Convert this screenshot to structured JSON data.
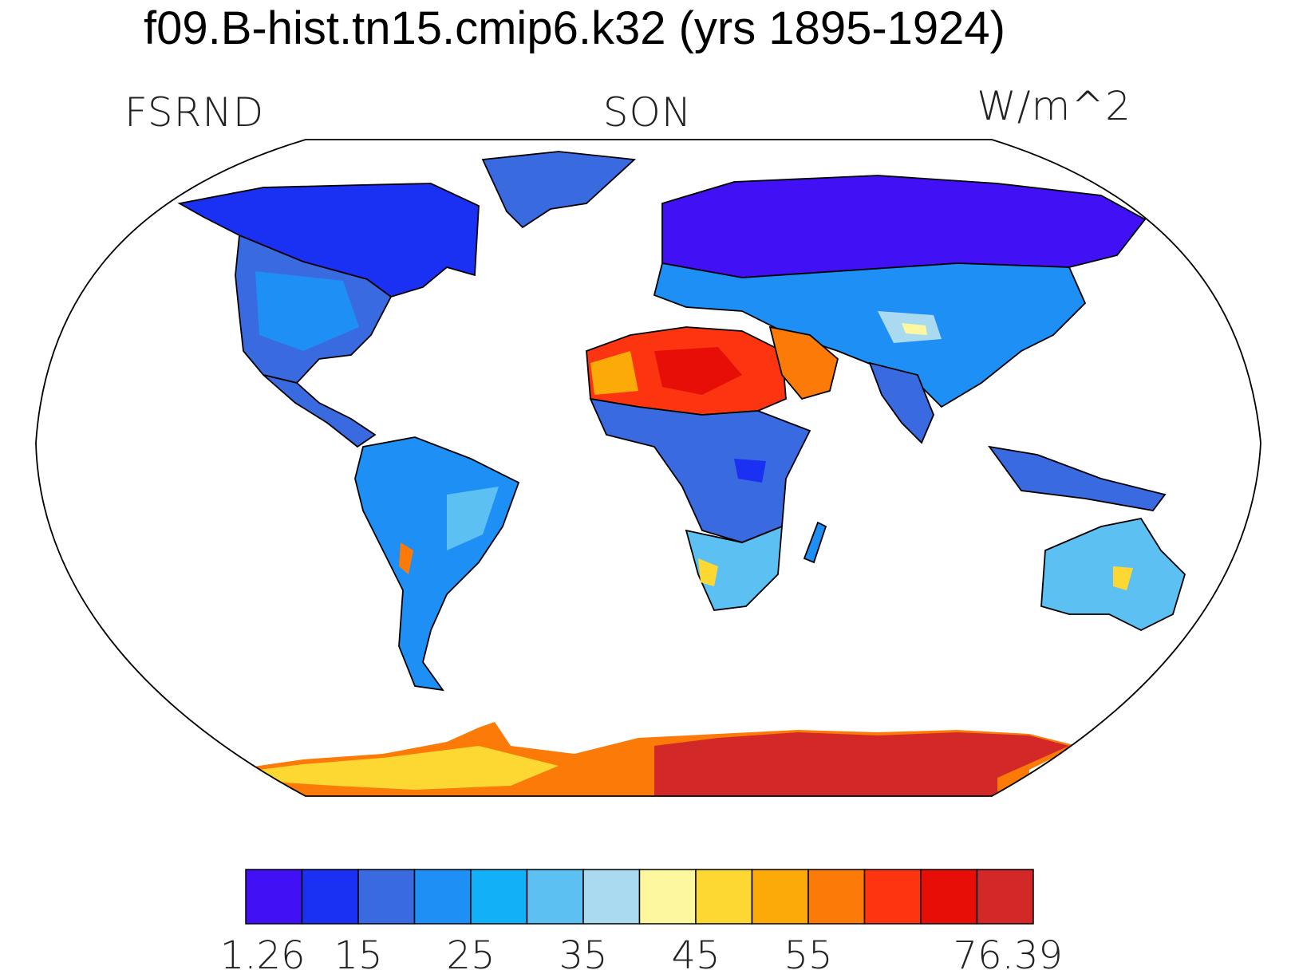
{
  "title": "f09.B-hist.tn15.cmip6.k32 (yrs 1895-1924)",
  "labels": {
    "left": "FSRND",
    "center": "SON",
    "right": "W/m^2"
  },
  "colorbar": {
    "colors": [
      "#4110f5",
      "#1a30f2",
      "#3a6ae0",
      "#1e8ff5",
      "#12b0f7",
      "#5cc0f2",
      "#aadaf0",
      "#fdf7a0",
      "#fdd832",
      "#fbaa08",
      "#fb7a08",
      "#fc3510",
      "#e80e08",
      "#d22828"
    ],
    "tick_labels": [
      "1.26",
      "15",
      "25",
      "35",
      "45",
      "55",
      "76.39"
    ],
    "tick_boundaries": [
      0,
      2,
      4,
      6,
      8,
      10,
      14
    ]
  },
  "map_data": {
    "projection": "robinson",
    "variable": "FSRND",
    "season": "SON",
    "units": "W/m^2",
    "value_range": [
      1.26,
      76.39
    ],
    "regions": [
      {
        "name": "sahara",
        "level": 12
      },
      {
        "name": "arabia",
        "level": 10
      },
      {
        "name": "antarctica-east",
        "level": 13
      },
      {
        "name": "antarctica-west",
        "level": 10
      },
      {
        "name": "northern-eurasia",
        "level": 1
      },
      {
        "name": "canada",
        "level": 1
      },
      {
        "name": "greenland",
        "level": 2
      },
      {
        "name": "usa",
        "level": 4
      },
      {
        "name": "south-america",
        "level": 4
      },
      {
        "name": "central-africa",
        "level": 3
      },
      {
        "name": "southern-africa",
        "level": 5
      },
      {
        "name": "australia",
        "level": 5
      },
      {
        "name": "tibet",
        "level": 6
      },
      {
        "name": "atacama",
        "level": 10
      },
      {
        "name": "kalahari",
        "level": 8
      },
      {
        "name": "central-australia",
        "level": 9
      }
    ]
  }
}
